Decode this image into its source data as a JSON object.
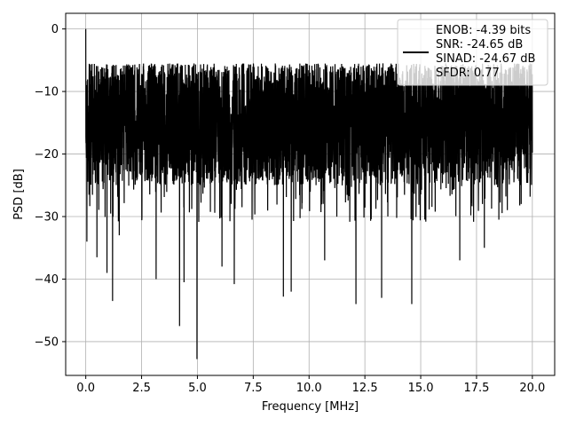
{
  "chart_data": {
    "type": "line",
    "title": "",
    "xlabel": "Frequency [MHz]",
    "ylabel": "PSD [dB]",
    "xlim": [
      -0.9,
      21.0
    ],
    "ylim": [
      -55.4,
      2.5
    ],
    "grid": true,
    "legend_placement": "top-right",
    "series": [
      {
        "name": "ENOB: -4.39 bits\nSNR: -24.65 dB\nSINAD: -24.67 dB\nSFDR: 0.77",
        "color": "#000000",
        "noise_model": {
          "x_start": 0.0,
          "x_end": 20.0,
          "points": 4000,
          "ceiling": -5.5,
          "typical_floor": -25.0,
          "dips": [
            {
              "x": 0.0,
              "y": 0.0
            },
            {
              "x": 0.05,
              "y": -34.0
            },
            {
              "x": 0.5,
              "y": -36.5
            },
            {
              "x": 0.95,
              "y": -39.0
            },
            {
              "x": 1.2,
              "y": -43.5
            },
            {
              "x": 1.5,
              "y": -33.0
            },
            {
              "x": 3.15,
              "y": -40.0
            },
            {
              "x": 4.2,
              "y": -47.5
            },
            {
              "x": 4.4,
              "y": -40.5
            },
            {
              "x": 4.98,
              "y": -52.8
            },
            {
              "x": 6.1,
              "y": -38.0
            },
            {
              "x": 6.65,
              "y": -40.8
            },
            {
              "x": 8.85,
              "y": -42.8
            },
            {
              "x": 9.2,
              "y": -42.0
            },
            {
              "x": 10.7,
              "y": -37.0
            },
            {
              "x": 12.1,
              "y": -44.0
            },
            {
              "x": 13.25,
              "y": -43.0
            },
            {
              "x": 14.6,
              "y": -44.0
            },
            {
              "x": 16.75,
              "y": -37.0
            },
            {
              "x": 17.85,
              "y": -35.0
            },
            {
              "x": 18.5,
              "y": -30.5
            },
            {
              "x": 19.5,
              "y": -28.0
            }
          ]
        }
      }
    ],
    "x_ticks": [
      0.0,
      2.5,
      5.0,
      7.5,
      10.0,
      12.5,
      15.0,
      17.5,
      20.0
    ],
    "x_tick_labels": [
      "0.0",
      "2.5",
      "5.0",
      "7.5",
      "10.0",
      "12.5",
      "15.0",
      "17.5",
      "20.0"
    ],
    "y_ticks": [
      0,
      -10,
      -20,
      -30,
      -40,
      -50
    ],
    "y_tick_labels": [
      "0",
      "−10",
      "−20",
      "−30",
      "−40",
      "−50"
    ],
    "legend": {
      "lines": [
        "ENOB: -4.39 bits",
        "SNR: -24.65 dB",
        "SINAD: -24.67 dB",
        "SFDR: 0.77"
      ]
    }
  }
}
